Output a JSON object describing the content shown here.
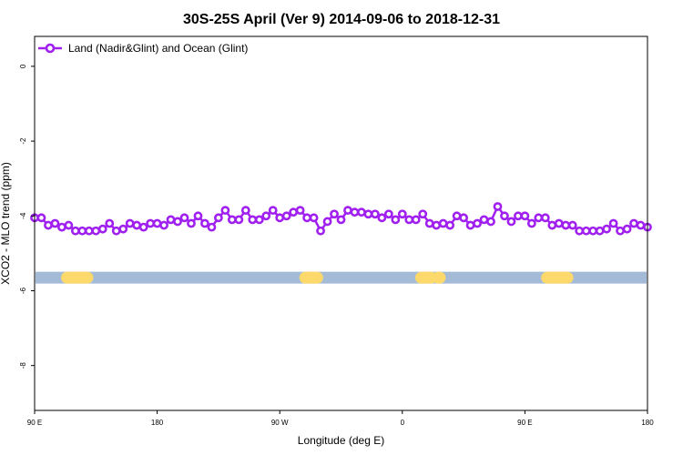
{
  "chart_data": {
    "type": "line",
    "title": "30S-25S April (Ver 9)   2014-09-06 to 2018-12-31",
    "xlabel": "Longitude (deg E)",
    "ylabel": "XCO2 - MLO trend (ppm)",
    "xlim": [
      90,
      450
    ],
    "ylim": [
      -9.2,
      0.8
    ],
    "x_ticks": [
      {
        "value": 90,
        "label": "90 E"
      },
      {
        "value": 162,
        "label": "180"
      },
      {
        "value": 234,
        "label": "90 W"
      },
      {
        "value": 306,
        "label": "0"
      },
      {
        "value": 378,
        "label": "90 E"
      },
      {
        "value": 450,
        "label": "180"
      }
    ],
    "y_ticks": [
      {
        "value": 0,
        "label": "0"
      },
      {
        "value": -2,
        "label": "-2"
      },
      {
        "value": -4,
        "label": "-4"
      },
      {
        "value": -6,
        "label": "-6"
      },
      {
        "value": -8,
        "label": "-8"
      }
    ],
    "legend": {
      "position": "top-left"
    },
    "series": [
      {
        "name": "Land (Nadir&Glint) and Ocean (Glint)",
        "color": "#a020f0",
        "marker": "open-circle",
        "x": [
          90,
          94,
          98,
          102,
          106,
          110,
          114,
          118,
          122,
          126,
          130,
          134,
          138,
          142,
          146,
          150,
          154,
          158,
          162,
          166,
          170,
          174,
          178,
          182,
          186,
          190,
          194,
          198,
          202,
          206,
          210,
          214,
          218,
          222,
          226,
          230,
          234,
          238,
          242,
          246,
          250,
          254,
          258,
          262,
          266,
          270,
          274,
          278,
          282,
          286,
          290,
          294,
          298,
          302,
          306,
          310,
          314,
          318,
          322,
          326,
          330,
          334,
          338,
          342,
          346,
          350,
          354,
          358,
          362,
          366,
          370,
          374,
          378,
          382,
          386,
          390,
          394,
          398,
          402,
          406,
          410,
          414,
          418,
          422,
          426,
          430,
          434,
          438,
          442,
          446,
          450
        ],
        "y": [
          -4.05,
          -4.05,
          -4.25,
          -4.2,
          -4.3,
          -4.25,
          -4.4,
          -4.4,
          -4.4,
          -4.4,
          -4.35,
          -4.2,
          -4.4,
          -4.35,
          -4.2,
          -4.25,
          -4.3,
          -4.2,
          -4.2,
          -4.25,
          -4.1,
          -4.15,
          -4.05,
          -4.2,
          -4.0,
          -4.2,
          -4.3,
          -4.05,
          -3.85,
          -4.1,
          -4.1,
          -3.85,
          -4.1,
          -4.1,
          -4.0,
          -3.85,
          -4.05,
          -4.0,
          -3.9,
          -3.85,
          -4.05,
          -4.05,
          -4.4,
          -4.15,
          -3.95,
          -4.1,
          -3.85,
          -3.9,
          -3.9,
          -3.95,
          -3.95,
          -4.05,
          -3.95,
          -4.1,
          -3.95,
          -4.1,
          -4.1,
          -3.95,
          -4.2,
          -4.25,
          -4.2,
          -4.25,
          -4.0,
          -4.05,
          -4.25,
          -4.2,
          -4.1,
          -4.15,
          -3.75,
          -4.0,
          -4.15,
          -4.0,
          -4.0,
          -4.2,
          -4.05,
          -4.05,
          -4.25,
          -4.2,
          -4.25,
          -4.25,
          -4.4,
          -4.4,
          -4.4,
          -4.4,
          -4.35,
          -4.2,
          -4.4,
          -4.35,
          -4.2,
          -4.25,
          -4.3
        ]
      }
    ],
    "surface_band": {
      "y": -5.65,
      "land_color": "#fcd96a",
      "ocean_color": "#a4bbd8",
      "land_ranges": [
        [
          109,
          121
        ],
        [
          249,
          256
        ],
        [
          317,
          323
        ],
        [
          327,
          328
        ],
        [
          391,
          403
        ]
      ]
    }
  }
}
